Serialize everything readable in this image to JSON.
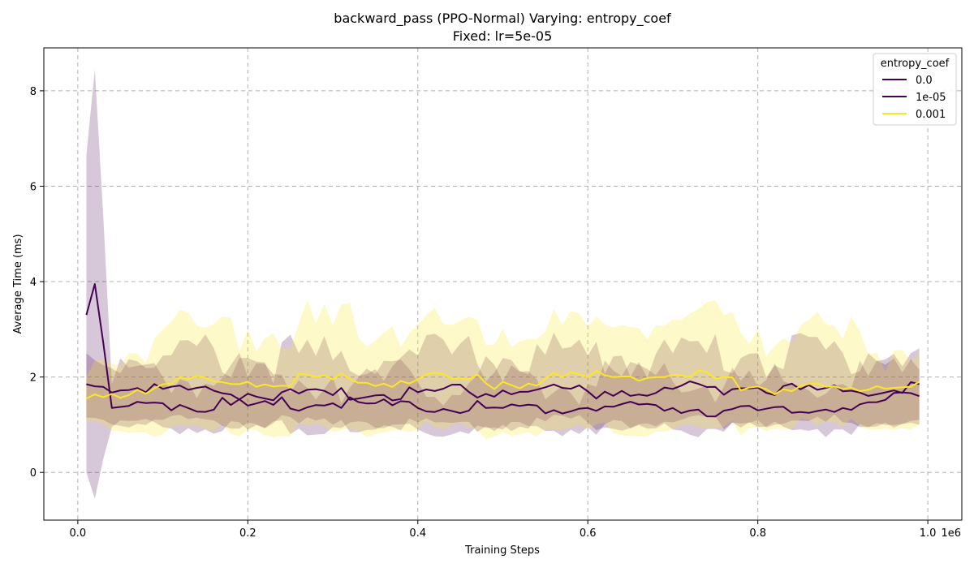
{
  "chart_data": {
    "type": "line",
    "title": "backward_pass (PPO-Normal) Varying: entropy_coef",
    "subtitle": "Fixed: lr=5e-05",
    "xlabel": "Training Steps",
    "ylabel": "Average Time (ms)",
    "x_offset_label": "1e6",
    "xlim": [
      -0.04,
      1.04
    ],
    "ylim": [
      -1.0,
      8.9
    ],
    "xticks": [
      0.0,
      0.2,
      0.4,
      0.6,
      0.8,
      1.0
    ],
    "xtick_labels": [
      "0.0",
      "0.2",
      "0.4",
      "0.6",
      "0.8",
      "1.0"
    ],
    "yticks": [
      0,
      2,
      4,
      6,
      8
    ],
    "ytick_labels": [
      "0",
      "2",
      "4",
      "6",
      "8"
    ],
    "grid": true,
    "legend": {
      "title": "entropy_coef",
      "position": "top-right"
    },
    "series": [
      {
        "name": "0.0",
        "color": "#440154",
        "points": [
          [
            0.01,
            1.85
          ],
          [
            0.1,
            1.75
          ],
          [
            0.2,
            1.65
          ],
          [
            0.3,
            1.62
          ],
          [
            0.4,
            1.68
          ],
          [
            0.5,
            1.72
          ],
          [
            0.6,
            1.7
          ],
          [
            0.7,
            1.75
          ],
          [
            0.8,
            1.78
          ],
          [
            0.9,
            1.7
          ],
          [
            0.99,
            1.85
          ]
        ],
        "band": [
          [
            0.01,
            1.15,
            2.5
          ],
          [
            0.1,
            1.1,
            2.45
          ],
          [
            0.2,
            1.05,
            2.4
          ],
          [
            0.3,
            1.0,
            2.35
          ],
          [
            0.4,
            1.05,
            2.45
          ],
          [
            0.5,
            1.0,
            2.4
          ],
          [
            0.6,
            1.05,
            2.45
          ],
          [
            0.7,
            1.05,
            2.5
          ],
          [
            0.8,
            1.1,
            2.5
          ],
          [
            0.9,
            1.05,
            2.5
          ],
          [
            0.99,
            1.1,
            2.6
          ]
        ]
      },
      {
        "name": "1e-05",
        "color": "#440154",
        "points": [
          [
            0.01,
            3.3
          ],
          [
            0.02,
            3.95
          ],
          [
            0.04,
            1.35
          ],
          [
            0.1,
            1.45
          ],
          [
            0.2,
            1.4
          ],
          [
            0.3,
            1.45
          ],
          [
            0.4,
            1.35
          ],
          [
            0.5,
            1.35
          ],
          [
            0.6,
            1.35
          ],
          [
            0.7,
            1.35
          ],
          [
            0.8,
            1.3
          ],
          [
            0.9,
            1.35
          ],
          [
            0.99,
            1.6
          ]
        ],
        "band": [
          [
            0.01,
            0.0,
            6.65
          ],
          [
            0.02,
            -0.55,
            8.45
          ],
          [
            0.04,
            0.95,
            1.85
          ],
          [
            0.1,
            0.95,
            2.0
          ],
          [
            0.2,
            0.9,
            2.0
          ],
          [
            0.3,
            0.95,
            2.0
          ],
          [
            0.4,
            0.9,
            1.9
          ],
          [
            0.5,
            0.9,
            1.9
          ],
          [
            0.6,
            0.95,
            1.85
          ],
          [
            0.7,
            0.9,
            1.9
          ],
          [
            0.8,
            0.95,
            1.8
          ],
          [
            0.9,
            0.9,
            1.85
          ],
          [
            0.99,
            1.0,
            2.15
          ]
        ]
      },
      {
        "name": "0.001",
        "color": "#fde725",
        "points": [
          [
            0.01,
            1.55
          ],
          [
            0.1,
            1.85
          ],
          [
            0.2,
            1.9
          ],
          [
            0.3,
            1.95
          ],
          [
            0.4,
            1.95
          ],
          [
            0.5,
            1.9
          ],
          [
            0.6,
            2.0
          ],
          [
            0.7,
            2.05
          ],
          [
            0.8,
            1.8
          ],
          [
            0.9,
            1.75
          ],
          [
            0.99,
            1.9
          ]
        ],
        "band": [
          [
            0.01,
            1.05,
            2.0
          ],
          [
            0.1,
            0.8,
            3.0
          ],
          [
            0.2,
            0.9,
            3.0
          ],
          [
            0.3,
            0.85,
            3.1
          ],
          [
            0.4,
            0.9,
            3.1
          ],
          [
            0.5,
            0.85,
            3.0
          ],
          [
            0.6,
            0.9,
            3.05
          ],
          [
            0.7,
            0.9,
            3.2
          ],
          [
            0.8,
            0.95,
            3.0
          ],
          [
            0.9,
            0.95,
            2.8
          ],
          [
            0.99,
            1.0,
            2.5
          ]
        ]
      }
    ]
  }
}
